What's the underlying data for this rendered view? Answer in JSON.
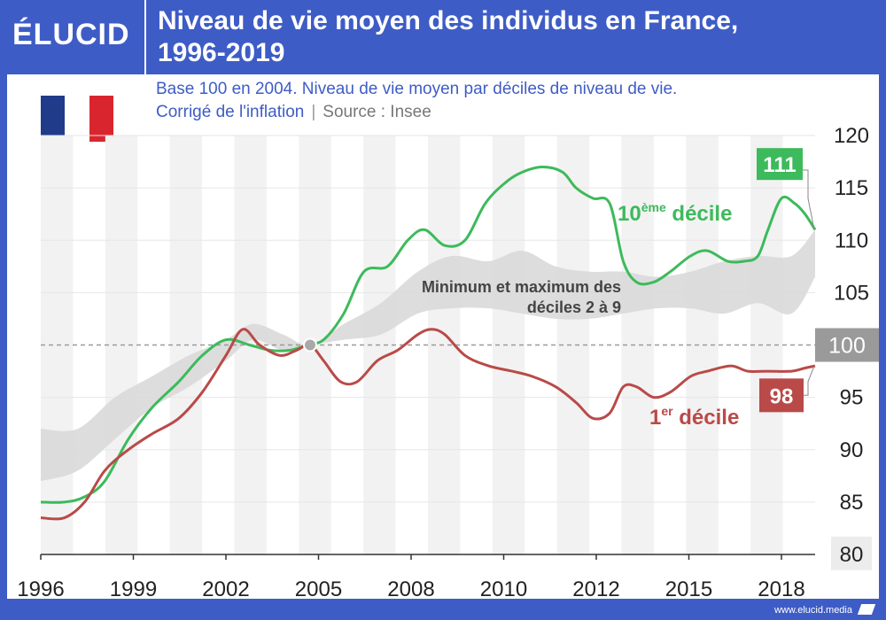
{
  "header": {
    "logo": "ÉLUCID",
    "title_line1": "Niveau de vie moyen des individus en France,",
    "title_line2": "1996-2019"
  },
  "subtitle": {
    "line1": "Base 100 en 2004. Niveau de vie moyen par déciles de niveau de vie.",
    "line2": "Corrigé de l'inflation",
    "separator": "|",
    "source": "Source : Insee"
  },
  "flag": {
    "colors": [
      "#1f3b8a",
      "#ffffff",
      "#d9262e"
    ]
  },
  "footer": {
    "url": "www.elucid.media"
  },
  "colors": {
    "green": "#3dba5b",
    "red": "#b94a48",
    "band": "#d9d9d9",
    "ref": "#9a9a9a",
    "brand": "#3e5cc6"
  },
  "chart_data": {
    "type": "line",
    "title": "",
    "ylim": [
      80,
      120
    ],
    "xlim": [
      1996,
      2019
    ],
    "y_ticks": [
      "80",
      "85",
      "90",
      "95",
      "100",
      "105",
      "110",
      "115",
      "120"
    ],
    "x_ticks": [
      {
        "label": "1996",
        "value": 1996
      },
      {
        "label": "1999",
        "value": 1998.75
      },
      {
        "label": "2002",
        "value": 2001.5
      },
      {
        "label": "2005",
        "value": 2004.25
      },
      {
        "label": "2008",
        "value": 2007
      },
      {
        "label": "2010",
        "value": 2009.75
      },
      {
        "label": "2012",
        "value": 2012.5
      },
      {
        "label": "2015",
        "value": 2015.25
      },
      {
        "label": "2018",
        "value": 2018
      }
    ],
    "reference_line": 100,
    "reference_label": "100",
    "series": [
      {
        "name": "10ème décile",
        "label_main": "10",
        "label_sup": "ème",
        "label_rest": " décile",
        "end_label": "111",
        "x": [
          1996,
          1996.7,
          1997.3,
          1997.9,
          1998.6,
          1999.3,
          2000.1,
          2000.8,
          2001.5,
          2002.2,
          2002.8,
          2003.4,
          2003.9,
          2004.4,
          2005.0,
          2005.6,
          2006.3,
          2006.9,
          2007.4,
          2008.0,
          2008.6,
          2009.2,
          2009.8,
          2010.3,
          2010.9,
          2011.5,
          2011.9,
          2012.4,
          2012.9,
          2013.3,
          2013.7,
          2014.2,
          2014.7,
          2015.3,
          2015.8,
          2016.4,
          2016.9,
          2017.3,
          2017.6,
          2018.0,
          2018.4,
          2018.7,
          2019.0
        ],
        "y": [
          85,
          85,
          85.5,
          87,
          91,
          94,
          96.5,
          99,
          100.5,
          100,
          99.5,
          99.5,
          100,
          100.5,
          103,
          107,
          107.5,
          110,
          111,
          109.5,
          110,
          113.5,
          115.5,
          116.5,
          117,
          116.5,
          115,
          114,
          113.5,
          108,
          106,
          106,
          107,
          108.5,
          109,
          108,
          108,
          108.5,
          111,
          114,
          113.5,
          112.5,
          111
        ]
      },
      {
        "name": "1er décile",
        "label_main": "1",
        "label_sup": "er",
        "label_rest": " décile",
        "end_label": "98",
        "x": [
          1996,
          1996.7,
          1997.3,
          1997.9,
          1998.6,
          1999.3,
          2000.1,
          2000.8,
          2001.5,
          2002.0,
          2002.5,
          2003.1,
          2003.6,
          2004.0,
          2004.4,
          2004.9,
          2005.4,
          2006.0,
          2006.6,
          2007.2,
          2007.6,
          2008.0,
          2008.6,
          2009.3,
          2010.0,
          2010.6,
          2011.3,
          2011.9,
          2012.4,
          2012.9,
          2013.3,
          2013.7,
          2014.2,
          2014.7,
          2015.3,
          2015.8,
          2016.5,
          2017.0,
          2017.6,
          2018.3,
          2018.7,
          2019.0
        ],
        "y": [
          83.5,
          83.5,
          85,
          88,
          90,
          91.5,
          93,
          95.5,
          99,
          101.5,
          100,
          99,
          99.5,
          100,
          98.5,
          96.5,
          96.5,
          98.5,
          99.5,
          101,
          101.5,
          101,
          99,
          98,
          97.5,
          97,
          96,
          94.5,
          93,
          93.5,
          96,
          96,
          95,
          95.5,
          97,
          97.5,
          98,
          97.5,
          97.5,
          97.5,
          97.8,
          98
        ]
      }
    ],
    "band": {
      "name": "Minimum et maximum des déciles 2 à 9",
      "label_line1": "Minimum et maximum des",
      "label_line2": "déciles 2 à 9",
      "x": [
        1996,
        1997.1,
        1998.2,
        1999.3,
        2000.4,
        2001.5,
        2002.3,
        2003.2,
        2004.0,
        2005.0,
        2006.1,
        2007.2,
        2008.2,
        2009.3,
        2010.3,
        2011.3,
        2012.3,
        2013.3,
        2014.3,
        2015.3,
        2016.3,
        2017.3,
        2018.3,
        2019.0
      ],
      "upper": [
        92,
        92,
        95,
        97,
        99,
        100.5,
        102,
        101,
        100,
        102,
        104,
        107,
        108.5,
        108,
        109,
        107.5,
        107,
        107,
        106.5,
        107,
        108,
        108.5,
        108.5,
        111
      ],
      "lower": [
        87,
        88,
        91,
        94,
        96,
        98.5,
        100.5,
        99.5,
        100,
        100.5,
        101,
        103,
        103.5,
        103.5,
        103,
        102.5,
        102.5,
        103,
        103.5,
        103.5,
        103,
        104,
        103,
        106.5
      ]
    },
    "start_marker": {
      "x": 2004,
      "y": 100
    },
    "xlabel": "",
    "ylabel": "",
    "grid": true,
    "legend": "inline labels"
  }
}
